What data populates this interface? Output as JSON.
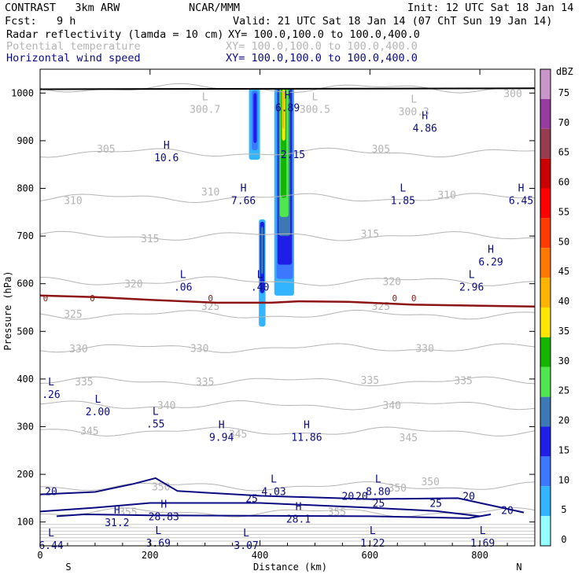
{
  "header": {
    "model": "CONTRAST   3km ARW",
    "org": "NCAR/MMM",
    "init": "Init: 12 UTC Sat 18 Jan 14",
    "fcst_label": "Fcst:",
    "fcst_value": "9 h",
    "valid": "Valid: 21 UTC Sat 18 Jan 14 (07 ChT Sun 19 Jan 14)",
    "fields": [
      {
        "name": "Radar reflectivity (lamda = 10 cm)",
        "xy": "XY= 100.0,100.0 to 100.0,400.0",
        "color": "#000000"
      },
      {
        "name": "Potential temperature",
        "xy": "XY= 100.0,100.0 to 100.0,400.0",
        "color": "#b4b4b4"
      },
      {
        "name": "Horizontal wind speed",
        "xy": "XY= 100.0,100.0 to 100.0,400.0",
        "color": "#0a0a82"
      }
    ]
  },
  "chart_data": {
    "type": "cross-section",
    "xlabel": "Distance (km)",
    "ylabel": "Pressure (hPa)",
    "xlim": [
      0,
      900
    ],
    "ylim": [
      1050,
      50
    ],
    "x_ticks": [
      0,
      200,
      400,
      600,
      800
    ],
    "y_ticks": [
      100,
      200,
      300,
      400,
      500,
      600,
      700,
      800,
      900,
      1000
    ],
    "end_labels": {
      "left": "S",
      "right": "N"
    },
    "colorbar": {
      "unit": "dBZ",
      "levels": [
        75,
        70,
        65,
        60,
        55,
        50,
        45,
        40,
        35,
        30,
        25,
        20,
        15,
        10,
        5,
        0
      ],
      "colors": [
        "#c896c8",
        "#963ca0",
        "#963c50",
        "#c80000",
        "#ff0000",
        "#ff3c00",
        "#ff7800",
        "#ffb400",
        "#ffe600",
        "#14b400",
        "#50e650",
        "#3c78b4",
        "#1e1ee6",
        "#3c78ff",
        "#32b4ff",
        "#96ffff"
      ]
    },
    "theta_contours": [
      {
        "value": 300,
        "p": 1010
      },
      {
        "value": 305,
        "p": 875
      },
      {
        "value": 310,
        "p": 780
      },
      {
        "value": 315,
        "p": 700
      },
      {
        "value": 320,
        "p": 605
      },
      {
        "value": 325,
        "p": 535
      },
      {
        "value": 330,
        "p": 465
      },
      {
        "value": 335,
        "p": 395
      },
      {
        "value": 340,
        "p": 345
      },
      {
        "value": 345,
        "p": 290
      },
      {
        "value": 350,
        "p": 175
      },
      {
        "value": 355,
        "p": 120
      }
    ],
    "theta_labels": [
      {
        "text": "300",
        "x": 860,
        "p": 1000
      },
      {
        "text": "305",
        "x": 120,
        "p": 883
      },
      {
        "text": "305",
        "x": 620,
        "p": 883
      },
      {
        "text": "310",
        "x": 60,
        "p": 775
      },
      {
        "text": "310",
        "x": 310,
        "p": 793
      },
      {
        "text": "310",
        "x": 740,
        "p": 787
      },
      {
        "text": "315",
        "x": 200,
        "p": 695
      },
      {
        "text": "315",
        "x": 600,
        "p": 705
      },
      {
        "text": "320",
        "x": 170,
        "p": 600
      },
      {
        "text": "320",
        "x": 640,
        "p": 605
      },
      {
        "text": "325",
        "x": 60,
        "p": 537
      },
      {
        "text": "325",
        "x": 310,
        "p": 553
      },
      {
        "text": "325",
        "x": 620,
        "p": 553
      },
      {
        "text": "330",
        "x": 70,
        "p": 464
      },
      {
        "text": "330",
        "x": 290,
        "p": 465
      },
      {
        "text": "330",
        "x": 700,
        "p": 465
      },
      {
        "text": "335",
        "x": 80,
        "p": 395
      },
      {
        "text": "335",
        "x": 300,
        "p": 395
      },
      {
        "text": "335",
        "x": 600,
        "p": 398
      },
      {
        "text": "335",
        "x": 770,
        "p": 397
      },
      {
        "text": "340",
        "x": 230,
        "p": 345
      },
      {
        "text": "340",
        "x": 640,
        "p": 345
      },
      {
        "text": "345",
        "x": 90,
        "p": 292
      },
      {
        "text": "345",
        "x": 360,
        "p": 285
      },
      {
        "text": "345",
        "x": 670,
        "p": 278
      },
      {
        "text": "350",
        "x": 220,
        "p": 175
      },
      {
        "text": "350",
        "x": 650,
        "p": 172
      },
      {
        "text": "350",
        "x": 710,
        "p": 185
      },
      {
        "text": "355",
        "x": 160,
        "p": 122
      },
      {
        "text": "355",
        "x": 540,
        "p": 122
      }
    ],
    "zero_contour_label": "0",
    "zero_labels_x": [
      10,
      95,
      310,
      645,
      680
    ],
    "wind_contours": [
      {
        "value": 20,
        "points": [
          [
            0,
            158
          ],
          [
            100,
            163
          ],
          [
            170,
            180
          ],
          [
            210,
            192
          ],
          [
            250,
            165
          ],
          [
            400,
            155
          ],
          [
            600,
            148
          ],
          [
            760,
            150
          ],
          [
            880,
            120
          ]
        ]
      },
      {
        "value": 25,
        "points": [
          [
            0,
            122
          ],
          [
            100,
            130
          ],
          [
            200,
            140
          ],
          [
            400,
            140
          ],
          [
            600,
            130
          ],
          [
            720,
            123
          ],
          [
            800,
            112
          ]
        ]
      },
      {
        "value": 30,
        "points": [
          [
            30,
            112
          ],
          [
            80,
            116
          ],
          [
            200,
            114
          ],
          [
            600,
            112
          ],
          [
            780,
            108
          ],
          [
            820,
            116
          ]
        ]
      }
    ],
    "wind_labels": [
      {
        "text": "20",
        "x": 20,
        "p": 165
      },
      {
        "text": "20",
        "x": 585,
        "p": 155
      },
      {
        "text": "20",
        "x": 780,
        "p": 155
      },
      {
        "text": "20",
        "x": 850,
        "p": 125
      },
      {
        "text": "25",
        "x": 385,
        "p": 150
      },
      {
        "text": "25",
        "x": 616,
        "p": 140
      },
      {
        "text": "25",
        "x": 720,
        "p": 140
      },
      {
        "text": "20",
        "x": 560,
        "p": 155
      }
    ],
    "extrema_labels": [
      {
        "kind": "L",
        "value": "6.44",
        "x": 20,
        "p": 70,
        "color": "navy"
      },
      {
        "kind": "L",
        "value": "3.69",
        "x": 215,
        "p": 75,
        "color": "navy"
      },
      {
        "kind": "L",
        "value": "3.07",
        "x": 375,
        "p": 70,
        "color": "navy"
      },
      {
        "kind": "L",
        "value": "1.22",
        "x": 605,
        "p": 75,
        "color": "navy"
      },
      {
        "kind": "L",
        "value": "1.69",
        "x": 805,
        "p": 75,
        "color": "navy"
      },
      {
        "kind": "H",
        "value": "31.2",
        "x": 140,
        "p": 118,
        "color": "navy"
      },
      {
        "kind": "H",
        "value": "28.83",
        "x": 225,
        "p": 130,
        "color": "navy"
      },
      {
        "kind": "H",
        "value": "28.1",
        "x": 470,
        "p": 125,
        "color": "navy"
      },
      {
        "kind": "L",
        "value": "4.03",
        "x": 425,
        "p": 183,
        "color": "navy"
      },
      {
        "kind": "L",
        "value": "8.80",
        "x": 615,
        "p": 183,
        "color": "navy"
      },
      {
        "kind": "H",
        "value": "9.94",
        "x": 330,
        "p": 297,
        "color": "navy"
      },
      {
        "kind": "H",
        "value": "11.86",
        "x": 485,
        "p": 297,
        "color": "navy"
      },
      {
        "kind": "L",
        "value": ".55",
        "x": 210,
        "p": 325,
        "color": "navy"
      },
      {
        "kind": "L",
        "value": "2.00",
        "x": 105,
        "p": 350,
        "color": "navy"
      },
      {
        "kind": "L",
        "value": ".26",
        "x": 20,
        "p": 387,
        "color": "navy"
      },
      {
        "kind": "L",
        "value": ".06",
        "x": 260,
        "p": 612,
        "color": "navy"
      },
      {
        "kind": "L",
        "value": ".40",
        "x": 400,
        "p": 612,
        "color": "navy"
      },
      {
        "kind": "L",
        "value": "2.96",
        "x": 785,
        "p": 612,
        "color": "navy"
      },
      {
        "kind": "H",
        "value": "6.29",
        "x": 820,
        "p": 665,
        "color": "navy"
      },
      {
        "kind": "H",
        "value": "7.66",
        "x": 370,
        "p": 793,
        "color": "navy"
      },
      {
        "kind": "L",
        "value": "1.85",
        "x": 660,
        "p": 793,
        "color": "navy"
      },
      {
        "kind": "H",
        "value": "6.45",
        "x": 875,
        "p": 793,
        "color": "navy"
      },
      {
        "kind": "H",
        "value": "10.6",
        "x": 230,
        "p": 883,
        "color": "navy"
      },
      {
        "kind": "",
        "value": "2.15",
        "x": 460,
        "p": 890,
        "color": "navy"
      },
      {
        "kind": "H",
        "value": "4.86",
        "x": 700,
        "p": 945,
        "color": "navy"
      },
      {
        "kind": "L",
        "value": "300.7",
        "x": 300,
        "p": 985,
        "color": "grey"
      },
      {
        "kind": "L",
        "value": "300.5",
        "x": 500,
        "p": 985,
        "color": "grey"
      },
      {
        "kind": "L",
        "value": "300.3",
        "x": 680,
        "p": 980,
        "color": "grey"
      },
      {
        "kind": "H",
        "value": "6.89",
        "x": 450,
        "p": 988,
        "color": "navy"
      }
    ],
    "reflectivity_cells": [
      {
        "x": [
          380,
          400
        ],
        "p": [
          860,
          1010
        ],
        "dbz": 5
      },
      {
        "x": [
          385,
          396
        ],
        "p": [
          880,
          1005
        ],
        "dbz": 10
      },
      {
        "x": [
          388,
          394
        ],
        "p": [
          895,
          1000
        ],
        "dbz": 15
      },
      {
        "x": [
          398,
          410
        ],
        "p": [
          510,
          735
        ],
        "dbz": 5
      },
      {
        "x": [
          400,
          408
        ],
        "p": [
          580,
          730
        ],
        "dbz": 15
      },
      {
        "x": [
          402,
          406
        ],
        "p": [
          620,
          720
        ],
        "dbz": 20
      },
      {
        "x": [
          426,
          462
        ],
        "p": [
          575,
          1010
        ],
        "dbz": 5
      },
      {
        "x": [
          430,
          460
        ],
        "p": [
          610,
          1010
        ],
        "dbz": 10
      },
      {
        "x": [
          432,
          458
        ],
        "p": [
          640,
          1010
        ],
        "dbz": 15
      },
      {
        "x": [
          434,
          455
        ],
        "p": [
          700,
          1010
        ],
        "dbz": 20
      },
      {
        "x": [
          436,
          452
        ],
        "p": [
          740,
          1010
        ],
        "dbz": 25
      },
      {
        "x": [
          438,
          448
        ],
        "p": [
          780,
          1010
        ],
        "dbz": 30
      },
      {
        "x": [
          440,
          446
        ],
        "p": [
          900,
          1008
        ],
        "dbz": 35
      },
      {
        "x": [
          441,
          444
        ],
        "p": [
          925,
          1005
        ],
        "dbz": 40
      }
    ]
  }
}
